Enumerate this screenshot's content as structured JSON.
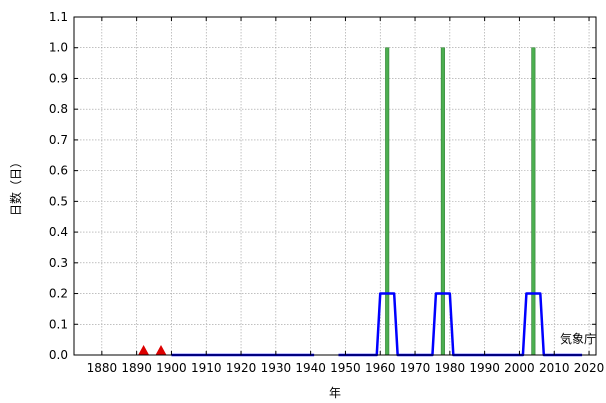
{
  "chart_data": {
    "type": "bar",
    "xlabel": "年",
    "ylabel": "日数（日）",
    "watermark": "気象庁",
    "xlim": [
      1872,
      2022
    ],
    "ylim": [
      0,
      1.1
    ],
    "xticks": [
      "1880",
      "1890",
      "1900",
      "1910",
      "1920",
      "1930",
      "1940",
      "1950",
      "1960",
      "1970",
      "1980",
      "1990",
      "2000",
      "2010",
      "2020"
    ],
    "yticks": [
      "0.0",
      "0.1",
      "0.2",
      "0.3",
      "0.4",
      "0.5",
      "0.6",
      "0.7",
      "0.8",
      "0.9",
      "1.0",
      "1.1"
    ],
    "grid": true,
    "bar_color": "#4caf50",
    "line_color": "#0000ff",
    "marker_color": "#dd0000",
    "bars": [
      {
        "year": 1962,
        "value": 1
      },
      {
        "year": 1978,
        "value": 1
      },
      {
        "year": 2004,
        "value": 1
      }
    ],
    "line_segments": [
      [
        [
          1900,
          0
        ],
        [
          1941,
          0
        ]
      ],
      [
        [
          1948,
          0
        ],
        [
          1959,
          0
        ],
        [
          1960,
          0.2
        ],
        [
          1964,
          0.2
        ],
        [
          1965,
          0
        ],
        [
          1975,
          0
        ],
        [
          1976,
          0.2
        ],
        [
          1980,
          0.2
        ],
        [
          1981,
          0
        ],
        [
          2001,
          0
        ],
        [
          2002,
          0.2
        ],
        [
          2006,
          0.2
        ],
        [
          2007,
          0
        ],
        [
          2018,
          0
        ]
      ]
    ],
    "markers": [
      {
        "year": 1892,
        "value": 0
      },
      {
        "year": 1897,
        "value": 0
      }
    ]
  }
}
